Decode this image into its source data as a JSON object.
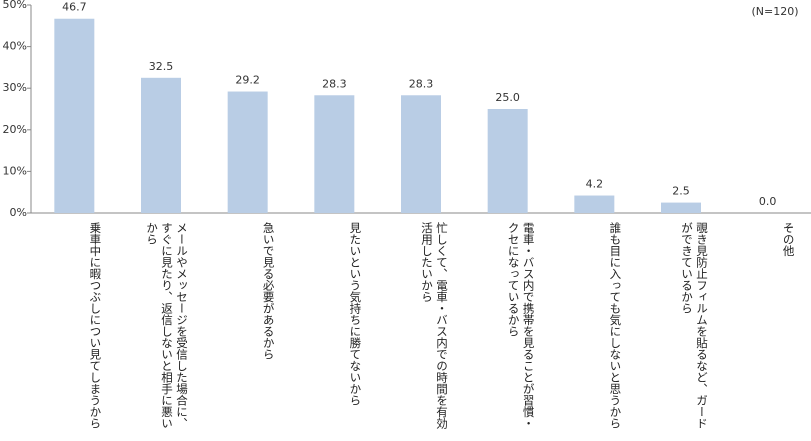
{
  "chart_data": {
    "type": "bar",
    "annotation": "(N=120)",
    "categories": [
      "乗車中に暇つぶしについ見てしまうから",
      "メールやメッセージを受信した場合に、すぐに見たり、返信しないと相手に悪いから",
      "急いで見る必要があるから",
      "見たいという気持ちに勝てないから",
      "忙しくて、電車・バス内での時間を有効活用したいから",
      "電車・バス内で携帯を見ることが習慣・クセになっているから",
      "誰も目に入っても気にしないと思うから",
      "覗き見防止フィルムを貼るなど、ガードができているから",
      "その他"
    ],
    "values": [
      46.7,
      32.5,
      29.2,
      28.3,
      28.3,
      25.0,
      4.2,
      2.5,
      0.0
    ],
    "value_labels": [
      "46.7",
      "32.5",
      "29.2",
      "28.3",
      "28.3",
      "25.0",
      "4.2",
      "2.5",
      "0.0"
    ],
    "color": "#b9cde5",
    "ylim": [
      0,
      50
    ],
    "yticks": [
      {
        "value": 0,
        "label": "0%"
      },
      {
        "value": 10,
        "label": "10%"
      },
      {
        "value": 20,
        "label": "20%"
      },
      {
        "value": 30,
        "label": "30%"
      },
      {
        "value": 40,
        "label": "40%"
      },
      {
        "value": 50,
        "label": "50%"
      }
    ]
  }
}
